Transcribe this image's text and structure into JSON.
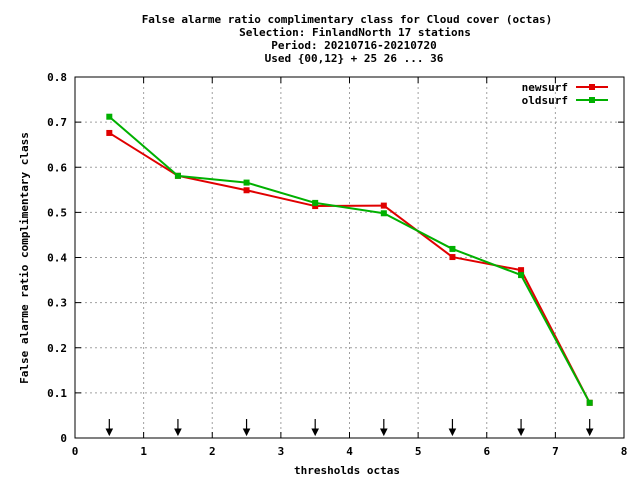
{
  "chart_data": {
    "type": "line",
    "title_lines": [
      "False alarme ratio complimentary class  for Cloud cover (octas)",
      "Selection: FinlandNorth     17 stations",
      "Period: 20210716-20210720",
      "Used {00,12} + 25 26 ... 36"
    ],
    "xlabel": "thresholds octas",
    "ylabel": "False alarme ratio complimentary class",
    "xlim": [
      0,
      8
    ],
    "ylim": [
      0,
      0.8
    ],
    "xticks": [
      0,
      1,
      2,
      3,
      4,
      5,
      6,
      7,
      8
    ],
    "yticks": [
      0,
      0.1,
      0.2,
      0.3,
      0.4,
      0.5,
      0.6,
      0.7,
      0.8
    ],
    "xtick_labels": [
      "0",
      "1",
      "2",
      "3",
      "4",
      "5",
      "6",
      "7",
      "8"
    ],
    "ytick_labels": [
      "0",
      "0.1",
      "0.2",
      "0.3",
      "0.4",
      "0.5",
      "0.6",
      "0.7",
      "0.8"
    ],
    "grid": true,
    "legend_position": "top-right",
    "arrow_markers_x": [
      0.5,
      1.5,
      2.5,
      3.5,
      4.5,
      5.5,
      6.5,
      7.5
    ],
    "series": [
      {
        "name": "newsurf",
        "color": "#e00000",
        "x": [
          0.5,
          1.5,
          2.5,
          3.5,
          4.5,
          5.5,
          6.5,
          7.5
        ],
        "y": [
          0.676,
          0.581,
          0.549,
          0.514,
          0.515,
          0.401,
          0.372,
          0.078
        ]
      },
      {
        "name": "oldsurf",
        "color": "#00b000",
        "x": [
          0.5,
          1.5,
          2.5,
          3.5,
          4.5,
          5.5,
          6.5,
          7.5
        ],
        "y": [
          0.712,
          0.581,
          0.566,
          0.521,
          0.498,
          0.419,
          0.361,
          0.078
        ]
      }
    ]
  }
}
